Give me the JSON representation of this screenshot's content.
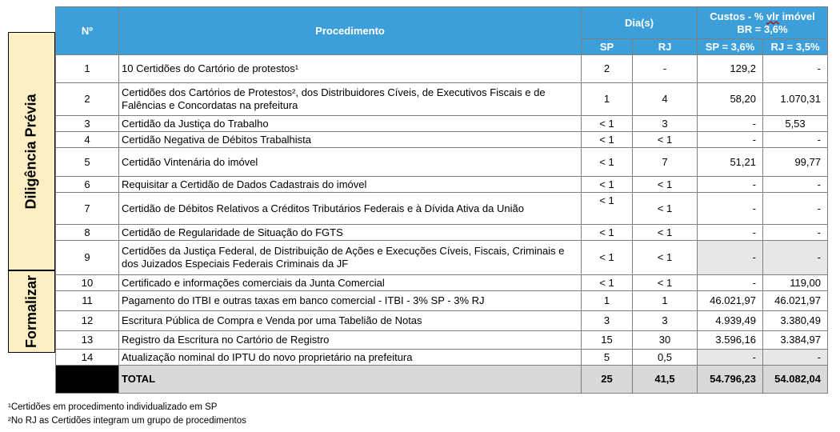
{
  "side_labels": {
    "diligencia": "Diligência Prévia",
    "formalizar": "Formalizar"
  },
  "header": {
    "num": "Nº",
    "procedimento": "Procedimento",
    "dias": "Dia(s)",
    "custos_line1_a": "Custos - % ",
    "custos_line1_b": "vlr",
    "custos_line1_c": " imóvel",
    "custos_line2": "BR = 3,6%",
    "sp": "SP",
    "rj": "RJ",
    "sp_cost": "SP = 3,6%",
    "rj_cost": "RJ = 3,5%"
  },
  "rows": [
    {
      "n": "1",
      "proc": "10 Certidões do Cartório de protestos¹",
      "sp": "2",
      "rj": "-",
      "csp": "129,2",
      "crj": "-"
    },
    {
      "n": "2",
      "proc": "Certidões dos Cartórios de Protestos², dos Distribuidores Cíveis, de Executivos Fiscais e de Falências e Concordatas na prefeitura",
      "sp": "1",
      "rj": "4",
      "csp": "58,20",
      "crj": "1.070,31"
    },
    {
      "n": "3",
      "proc": "Certidão da Justiça do Trabalho",
      "sp": "< 1",
      "rj": "3",
      "csp": "-",
      "crj": "5,53"
    },
    {
      "n": "4",
      "proc": "Certidão Negativa de Débitos Trabalhista",
      "sp": "< 1",
      "rj": "< 1",
      "csp": "-",
      "crj": "-"
    },
    {
      "n": "5",
      "proc": "Certidão Vintenária do imóvel",
      "sp": "< 1",
      "rj": "7",
      "csp": "51,21",
      "crj": "99,77"
    },
    {
      "n": "6",
      "proc": "Requisitar a Certidão de Dados Cadastrais do imóvel",
      "sp": "< 1",
      "rj": "< 1",
      "csp": "-",
      "crj": "-"
    },
    {
      "n": "7",
      "proc": "Certidão de Débitos Relativos a Créditos Tributários Federais e à Dívida Ativa da União",
      "sp": "< 1",
      "rj": "< 1",
      "csp": "-",
      "crj": "-"
    },
    {
      "n": "8",
      "proc": "Certidão de Regularidade de Situação do FGTS",
      "sp": "< 1",
      "rj": "< 1",
      "csp": "-",
      "crj": "-"
    },
    {
      "n": "9",
      "proc": "Certidões da Justiça Federal, de Distribuição de Ações e Execuções Cíveis, Fiscais, Criminais e dos Juizados Especiais Federais Criminais da JF",
      "sp": "< 1",
      "rj": "< 1",
      "csp": "-",
      "crj": "-"
    },
    {
      "n": "10",
      "proc": "Certificado e informações comerciais da Junta Comercial",
      "sp": "< 1",
      "rj": "< 1",
      "csp": "-",
      "crj": "119,00"
    },
    {
      "n": "11",
      "proc": "Pagamento do ITBI e outras taxas em banco comercial - ITBI - 3% SP - 3% RJ",
      "sp": "1",
      "rj": "1",
      "csp": "46.021,97",
      "crj": "46.021,97"
    },
    {
      "n": "12",
      "proc": "Escritura Pública de Compra e Venda por uma Tabelião de Notas",
      "sp": "3",
      "rj": "3",
      "csp": "4.939,49",
      "crj": "3.380,49"
    },
    {
      "n": "13",
      "proc": "Registro da Escritura no Cartório de Registro",
      "sp": "15",
      "rj": "30",
      "csp": "3.596,16",
      "crj": "3.384,97"
    },
    {
      "n": "14",
      "proc": "Atualização nominal do IPTU do novo proprietário na prefeitura",
      "sp": "5",
      "rj": "0,5",
      "csp": "-",
      "crj": "-"
    }
  ],
  "total": {
    "label": "TOTAL",
    "sp": "25",
    "rj": "41,5",
    "csp": "54.796,23",
    "crj": "54.082,04"
  },
  "footnotes": [
    "¹Certidões em procedimento individualizado em SP",
    "²No RJ as Certidões integram um grupo de procedimentos"
  ]
}
